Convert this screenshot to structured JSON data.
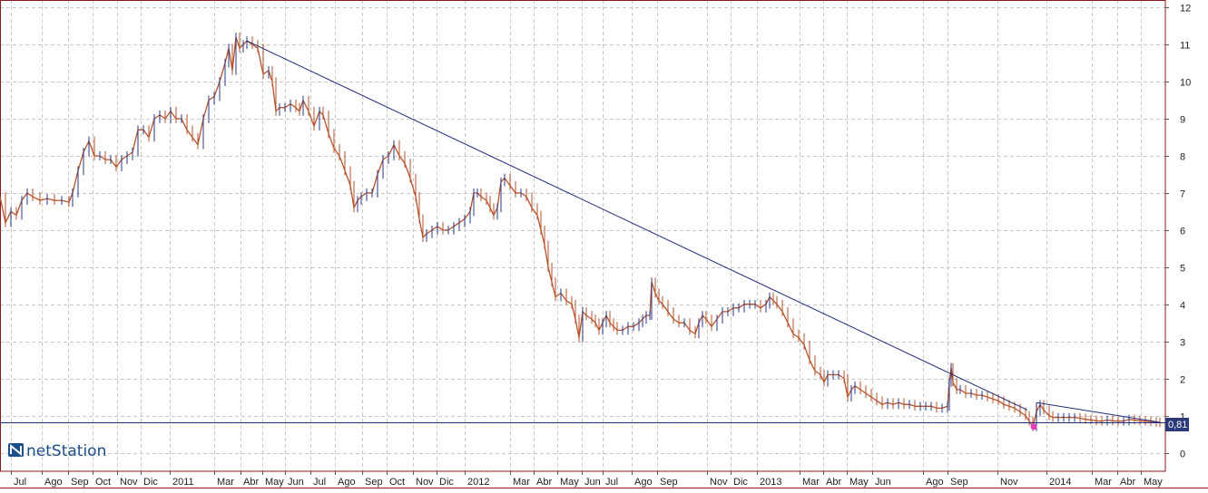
{
  "brand": {
    "name": "netStation",
    "logo_icon": "netstation-logo-icon"
  },
  "colors": {
    "frame": "#8b1a1a",
    "grid": "#c8c8c8",
    "price_line": "#b5522a",
    "trend_line": "#1f2a7a",
    "support_line": "#1f2a7a",
    "last_label_bg": "#2b3a7a",
    "marker": "#e040c0"
  },
  "chart_data": {
    "type": "line",
    "title": "",
    "xlabel": "",
    "ylabel": "",
    "ylim": [
      -0.5,
      12.2
    ],
    "grid": true,
    "y_ticks": [
      "0",
      "1",
      "2",
      "3",
      "4",
      "5",
      "6",
      "7",
      "8",
      "9",
      "10",
      "11",
      "12"
    ],
    "x_labels": [
      "Jul",
      "Ago",
      "Sep",
      "Oct",
      "Nov",
      "Dic",
      "2011",
      "Mar",
      "Abr",
      "May",
      "Jun",
      "Jul",
      "Ago",
      "Sep",
      "Oct",
      "Nov",
      "Dic",
      "2012",
      "Mar",
      "Abr",
      "May",
      "Jun",
      "Jul",
      "Ago",
      "Sep",
      "Nov",
      "Dic",
      "2013",
      "Mar",
      "Abr",
      "May",
      "Jun",
      "Ago",
      "Sep",
      "Nov",
      "2014",
      "Mar",
      "Abr",
      "May"
    ],
    "x_label_pos": [
      12,
      46,
      75,
      102,
      129,
      155,
      187,
      236,
      265,
      289,
      314,
      342,
      369,
      399,
      426,
      455,
      481,
      512,
      562,
      588,
      614,
      641,
      664,
      696,
      724,
      779,
      805,
      834,
      881,
      907,
      933,
      961,
      1017,
      1044,
      1099,
      1153,
      1203,
      1231,
      1257
    ],
    "last_value": "0,81",
    "series": [
      {
        "values": [
          [
            0,
            6.9
          ],
          [
            6,
            6.2
          ],
          [
            12,
            6.5
          ],
          [
            18,
            6.4
          ],
          [
            24,
            6.8
          ],
          [
            30,
            7.0
          ],
          [
            36,
            6.9
          ],
          [
            44,
            6.8
          ],
          [
            52,
            6.85
          ],
          [
            60,
            6.8
          ],
          [
            68,
            6.8
          ],
          [
            76,
            6.75
          ],
          [
            80,
            7.0
          ],
          [
            86,
            7.6
          ],
          [
            92,
            8.1
          ],
          [
            98,
            8.4
          ],
          [
            104,
            8.0
          ],
          [
            110,
            8.0
          ],
          [
            116,
            7.9
          ],
          [
            122,
            7.9
          ],
          [
            128,
            7.7
          ],
          [
            134,
            7.9
          ],
          [
            140,
            8.0
          ],
          [
            146,
            8.1
          ],
          [
            152,
            8.7
          ],
          [
            158,
            8.7
          ],
          [
            164,
            8.5
          ],
          [
            170,
            9.0
          ],
          [
            176,
            9.1
          ],
          [
            182,
            9.0
          ],
          [
            188,
            9.2
          ],
          [
            194,
            9.0
          ],
          [
            200,
            9.0
          ],
          [
            206,
            8.7
          ],
          [
            212,
            8.5
          ],
          [
            218,
            8.3
          ],
          [
            224,
            9.0
          ],
          [
            230,
            9.5
          ],
          [
            236,
            9.6
          ],
          [
            242,
            10.0
          ],
          [
            248,
            10.5
          ],
          [
            252,
            10.9
          ],
          [
            256,
            10.3
          ],
          [
            260,
            11.2
          ],
          [
            264,
            10.9
          ],
          [
            268,
            11.0
          ],
          [
            272,
            11.1
          ],
          [
            278,
            11.0
          ],
          [
            284,
            10.9
          ],
          [
            290,
            10.2
          ],
          [
            296,
            10.3
          ],
          [
            300,
            10.0
          ],
          [
            304,
            9.2
          ],
          [
            308,
            9.3
          ],
          [
            314,
            9.3
          ],
          [
            320,
            9.4
          ],
          [
            326,
            9.3
          ],
          [
            330,
            9.2
          ],
          [
            334,
            9.5
          ],
          [
            340,
            9.2
          ],
          [
            346,
            8.8
          ],
          [
            352,
            9.2
          ],
          [
            356,
            9.1
          ],
          [
            362,
            8.6
          ],
          [
            368,
            8.2
          ],
          [
            374,
            8.0
          ],
          [
            380,
            7.6
          ],
          [
            386,
            7.2
          ],
          [
            390,
            6.6
          ],
          [
            394,
            6.8
          ],
          [
            398,
            6.9
          ],
          [
            404,
            7.0
          ],
          [
            410,
            7.0
          ],
          [
            416,
            7.5
          ],
          [
            422,
            7.9
          ],
          [
            428,
            8.0
          ],
          [
            434,
            8.3
          ],
          [
            440,
            8.0
          ],
          [
            446,
            7.8
          ],
          [
            452,
            7.4
          ],
          [
            458,
            6.9
          ],
          [
            462,
            6.3
          ],
          [
            466,
            5.8
          ],
          [
            470,
            5.9
          ],
          [
            476,
            6.0
          ],
          [
            482,
            6.1
          ],
          [
            488,
            6.0
          ],
          [
            494,
            6.0
          ],
          [
            500,
            6.1
          ],
          [
            506,
            6.2
          ],
          [
            512,
            6.3
          ],
          [
            518,
            6.5
          ],
          [
            522,
            7.0
          ],
          [
            526,
            7.0
          ],
          [
            530,
            6.9
          ],
          [
            536,
            6.8
          ],
          [
            540,
            6.6
          ],
          [
            544,
            6.4
          ],
          [
            548,
            6.6
          ],
          [
            552,
            7.3
          ],
          [
            556,
            7.4
          ],
          [
            562,
            7.2
          ],
          [
            568,
            7.0
          ],
          [
            574,
            7.0
          ],
          [
            580,
            6.9
          ],
          [
            586,
            6.6
          ],
          [
            592,
            6.4
          ],
          [
            596,
            6.0
          ],
          [
            600,
            5.6
          ],
          [
            604,
            5.0
          ],
          [
            608,
            4.6
          ],
          [
            612,
            4.2
          ],
          [
            618,
            4.3
          ],
          [
            624,
            4.1
          ],
          [
            630,
            4.0
          ],
          [
            634,
            3.6
          ],
          [
            638,
            3.1
          ],
          [
            642,
            3.8
          ],
          [
            646,
            3.7
          ],
          [
            652,
            3.6
          ],
          [
            656,
            3.5
          ],
          [
            660,
            3.3
          ],
          [
            664,
            3.5
          ],
          [
            668,
            3.7
          ],
          [
            672,
            3.5
          ],
          [
            676,
            3.4
          ],
          [
            680,
            3.3
          ],
          [
            686,
            3.3
          ],
          [
            692,
            3.4
          ],
          [
            698,
            3.4
          ],
          [
            704,
            3.5
          ],
          [
            708,
            3.6
          ],
          [
            712,
            3.7
          ],
          [
            716,
            3.7
          ],
          [
            718,
            4.6
          ],
          [
            722,
            4.3
          ],
          [
            726,
            4.1
          ],
          [
            730,
            4.0
          ],
          [
            736,
            3.8
          ],
          [
            742,
            3.6
          ],
          [
            748,
            3.5
          ],
          [
            754,
            3.5
          ],
          [
            760,
            3.3
          ],
          [
            766,
            3.2
          ],
          [
            770,
            3.5
          ],
          [
            774,
            3.7
          ],
          [
            778,
            3.6
          ],
          [
            784,
            3.4
          ],
          [
            790,
            3.6
          ],
          [
            796,
            3.8
          ],
          [
            802,
            3.8
          ],
          [
            808,
            3.9
          ],
          [
            814,
            3.9
          ],
          [
            820,
            4.0
          ],
          [
            826,
            4.0
          ],
          [
            832,
            4.0
          ],
          [
            838,
            3.9
          ],
          [
            844,
            4.0
          ],
          [
            848,
            4.2
          ],
          [
            852,
            4.1
          ],
          [
            856,
            4.0
          ],
          [
            862,
            3.8
          ],
          [
            868,
            3.5
          ],
          [
            874,
            3.2
          ],
          [
            880,
            3.1
          ],
          [
            886,
            2.9
          ],
          [
            892,
            2.5
          ],
          [
            898,
            2.2
          ],
          [
            904,
            2.1
          ],
          [
            908,
            1.9
          ],
          [
            912,
            2.1
          ],
          [
            918,
            2.1
          ],
          [
            924,
            2.1
          ],
          [
            930,
            2.0
          ],
          [
            934,
            1.5
          ],
          [
            938,
            1.7
          ],
          [
            942,
            1.8
          ],
          [
            948,
            1.7
          ],
          [
            954,
            1.6
          ],
          [
            960,
            1.5
          ],
          [
            966,
            1.4
          ],
          [
            972,
            1.3
          ],
          [
            978,
            1.35
          ],
          [
            984,
            1.3
          ],
          [
            990,
            1.35
          ],
          [
            996,
            1.3
          ],
          [
            1002,
            1.3
          ],
          [
            1008,
            1.25
          ],
          [
            1014,
            1.25
          ],
          [
            1020,
            1.25
          ],
          [
            1026,
            1.25
          ],
          [
            1032,
            1.2
          ],
          [
            1038,
            1.2
          ],
          [
            1044,
            1.25
          ],
          [
            1046,
            1.9
          ],
          [
            1048,
            2.3
          ],
          [
            1050,
            1.9
          ],
          [
            1054,
            1.7
          ],
          [
            1058,
            1.7
          ],
          [
            1064,
            1.6
          ],
          [
            1070,
            1.6
          ],
          [
            1076,
            1.55
          ],
          [
            1082,
            1.55
          ],
          [
            1088,
            1.5
          ],
          [
            1094,
            1.45
          ],
          [
            1100,
            1.4
          ],
          [
            1106,
            1.3
          ],
          [
            1112,
            1.25
          ],
          [
            1118,
            1.2
          ],
          [
            1124,
            1.1
          ],
          [
            1130,
            1.0
          ],
          [
            1134,
            0.85
          ],
          [
            1138,
            0.7
          ],
          [
            1142,
            1.1
          ],
          [
            1146,
            1.3
          ],
          [
            1150,
            1.15
          ],
          [
            1156,
            1.0
          ],
          [
            1160,
            0.95
          ],
          [
            1166,
            0.95
          ],
          [
            1172,
            0.95
          ],
          [
            1178,
            0.95
          ],
          [
            1184,
            0.95
          ],
          [
            1190,
            0.93
          ],
          [
            1196,
            0.9
          ],
          [
            1202,
            0.88
          ],
          [
            1208,
            0.86
          ],
          [
            1214,
            0.85
          ],
          [
            1220,
            0.88
          ],
          [
            1226,
            0.86
          ],
          [
            1232,
            0.85
          ],
          [
            1238,
            0.85
          ],
          [
            1244,
            0.9
          ],
          [
            1250,
            0.88
          ],
          [
            1256,
            0.86
          ],
          [
            1262,
            0.85
          ],
          [
            1268,
            0.84
          ],
          [
            1274,
            0.82
          ],
          [
            1278,
            0.81
          ]
        ]
      }
    ]
  }
}
